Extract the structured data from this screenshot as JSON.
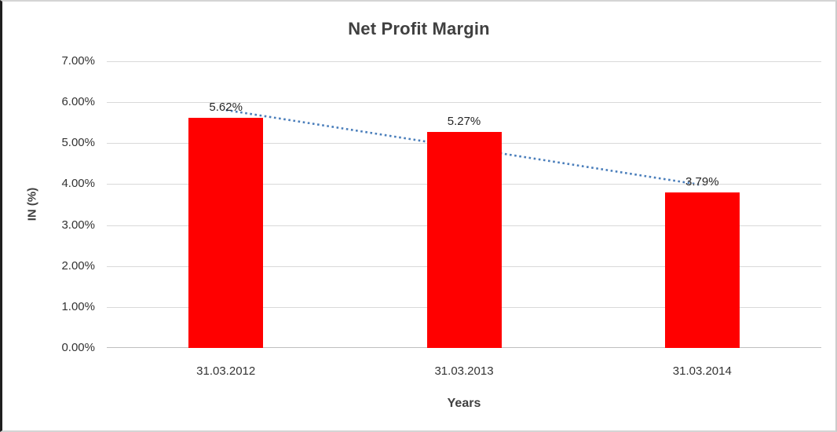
{
  "chart_data": {
    "type": "bar",
    "title": "Net Profit Margin",
    "xlabel": "Years",
    "ylabel": "IN (%)",
    "categories": [
      "31.03.2012",
      "31.03.2013",
      "31.03.2014"
    ],
    "values": [
      5.62,
      5.27,
      3.79
    ],
    "data_labels": [
      "5.62%",
      "5.27%",
      "3.79%"
    ],
    "ylim": [
      0,
      7
    ],
    "ytick_step": 1,
    "ytick_labels": [
      "0.00%",
      "1.00%",
      "2.00%",
      "3.00%",
      "4.00%",
      "5.00%",
      "6.00%",
      "7.00%"
    ],
    "grid": true,
    "legend": "none",
    "bar_color": "#ff0000",
    "trendline": {
      "type": "linear",
      "style": "dotted",
      "color": "#4a7ebb"
    },
    "colors": {
      "title_text": "#404040",
      "axis_text": "#333333",
      "data_label_text": "#262626",
      "gridline": "#d9d9d9",
      "axis_line": "#bfbfbf",
      "background": "#ffffff"
    }
  }
}
